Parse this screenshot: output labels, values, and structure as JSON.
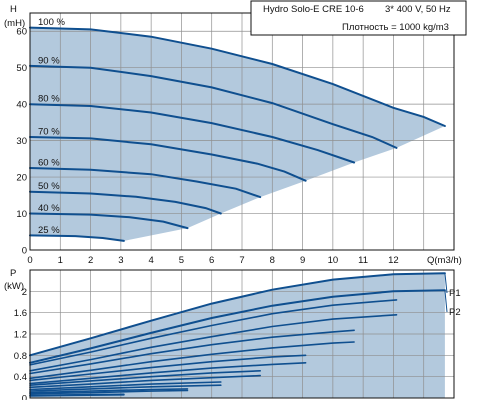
{
  "chart_data": [
    {
      "type": "line",
      "title": "Hydro Solo-E CRE 10-6",
      "subtitle": "3* 400 V, 50 Hz",
      "note": "Плотность = 1000 kg/m3",
      "ylabel": "H",
      "yunit": "(mH)",
      "xlabel": "Q(m3/h)",
      "xlim": [
        0,
        14
      ],
      "ylim": [
        0,
        65
      ],
      "xticks": [
        "0",
        "1",
        "2",
        "3",
        "4",
        "5",
        "6",
        "7",
        "8",
        "9",
        "10",
        "11",
        "12"
      ],
      "yticks": [
        "0",
        "10",
        "20",
        "30",
        "40",
        "50",
        "60"
      ],
      "grid": true,
      "series": [
        {
          "name": "100 %",
          "x": [
            0,
            2,
            4,
            6,
            8,
            10,
            12,
            13,
            13.7
          ],
          "y": [
            61,
            60.5,
            58.5,
            55.2,
            51,
            45.5,
            39,
            36.5,
            34
          ]
        },
        {
          "name": "90 %",
          "x": [
            0,
            2,
            4,
            6,
            8,
            10,
            11.3,
            12.1
          ],
          "y": [
            50.5,
            50,
            47.7,
            44.6,
            40.3,
            34.5,
            31,
            28
          ]
        },
        {
          "name": "80 %",
          "x": [
            0,
            2,
            4,
            6,
            8,
            9.5,
            10.7
          ],
          "y": [
            40,
            39.5,
            37.7,
            34.8,
            31,
            27.4,
            24
          ]
        },
        {
          "name": "70 %",
          "x": [
            0,
            2,
            4,
            6,
            7.5,
            8.4,
            9.1
          ],
          "y": [
            31,
            30.6,
            29,
            26.2,
            23.7,
            21.5,
            19
          ]
        },
        {
          "name": "60 %",
          "x": [
            0,
            2,
            4,
            5.5,
            6.8,
            7.6
          ],
          "y": [
            22.5,
            22,
            20.8,
            18.8,
            16.8,
            14.5
          ]
        },
        {
          "name": "50 %",
          "x": [
            0,
            2,
            3.5,
            4.8,
            5.8,
            6.3
          ],
          "y": [
            16,
            15.5,
            14.6,
            13.2,
            11.5,
            10
          ]
        },
        {
          "name": "40 %",
          "x": [
            0,
            2,
            3.3,
            4.4,
            5.2
          ],
          "y": [
            10,
            9.7,
            9,
            7.8,
            6
          ]
        },
        {
          "name": "25 %",
          "x": [
            0,
            1.5,
            2.4,
            3.1
          ],
          "y": [
            4,
            3.8,
            3.3,
            2.5
          ]
        }
      ]
    },
    {
      "type": "line",
      "ylabel": "P",
      "yunit": "(kW)",
      "xlim": [
        0,
        14
      ],
      "ylim": [
        0,
        2.4
      ],
      "yticks": [
        "0",
        "0.4",
        "0.8",
        "1.2",
        "1.6",
        "2"
      ],
      "grid": true,
      "series": [
        {
          "name": "P1",
          "x": [
            0,
            2,
            4,
            6,
            8,
            10,
            12,
            13.7
          ],
          "y": [
            0.8,
            1.12,
            1.45,
            1.77,
            2.03,
            2.22,
            2.32,
            2.34
          ]
        },
        {
          "name": "P2",
          "x": [
            0,
            2,
            4,
            6,
            8,
            10,
            12,
            13.7
          ],
          "y": [
            0.66,
            0.93,
            1.22,
            1.5,
            1.73,
            1.9,
            2.0,
            2.02
          ]
        },
        {
          "x": [
            0,
            2,
            4,
            6,
            8,
            10,
            12.1
          ],
          "y": [
            0.62,
            0.86,
            1.12,
            1.36,
            1.58,
            1.74,
            1.84
          ]
        },
        {
          "x": [
            0,
            2,
            4,
            6,
            8,
            10,
            12.1
          ],
          "y": [
            0.51,
            0.72,
            0.95,
            1.15,
            1.34,
            1.48,
            1.56
          ]
        },
        {
          "x": [
            0,
            2,
            4,
            6,
            8,
            10,
            10.7
          ],
          "y": [
            0.46,
            0.64,
            0.83,
            1.0,
            1.14,
            1.24,
            1.27
          ]
        },
        {
          "x": [
            0,
            2,
            4,
            6,
            8,
            10,
            10.7
          ],
          "y": [
            0.37,
            0.52,
            0.68,
            0.82,
            0.94,
            1.03,
            1.05
          ]
        },
        {
          "x": [
            0,
            2,
            4,
            6,
            8,
            9.1
          ],
          "y": [
            0.33,
            0.45,
            0.57,
            0.68,
            0.77,
            0.8
          ]
        },
        {
          "x": [
            0,
            2,
            4,
            6,
            8,
            9.1
          ],
          "y": [
            0.27,
            0.37,
            0.47,
            0.56,
            0.63,
            0.66
          ]
        },
        {
          "x": [
            0,
            2,
            4,
            6,
            7.6
          ],
          "y": [
            0.24,
            0.32,
            0.4,
            0.47,
            0.51
          ]
        },
        {
          "x": [
            0,
            2,
            4,
            6,
            7.6
          ],
          "y": [
            0.2,
            0.26,
            0.33,
            0.38,
            0.42
          ]
        },
        {
          "x": [
            0,
            2,
            4,
            6.3
          ],
          "y": [
            0.16,
            0.21,
            0.26,
            0.3
          ]
        },
        {
          "x": [
            0,
            2,
            4,
            6.3
          ],
          "y": [
            0.13,
            0.17,
            0.21,
            0.24
          ]
        },
        {
          "x": [
            0,
            2,
            4,
            5.2
          ],
          "y": [
            0.1,
            0.13,
            0.16,
            0.17
          ]
        },
        {
          "x": [
            0,
            2,
            4,
            5.2
          ],
          "y": [
            0.08,
            0.1,
            0.13,
            0.14
          ]
        },
        {
          "x": [
            0,
            1.5,
            3.1
          ],
          "y": [
            0.05,
            0.06,
            0.07
          ]
        },
        {
          "x": [
            0,
            1.5,
            3.1
          ],
          "y": [
            0.04,
            0.05,
            0.06
          ]
        }
      ]
    }
  ],
  "colors": {
    "fill": "#b3c9dd",
    "curve": "#0f4f8f",
    "grid": "#8f8f8f",
    "frame": "#111111"
  }
}
